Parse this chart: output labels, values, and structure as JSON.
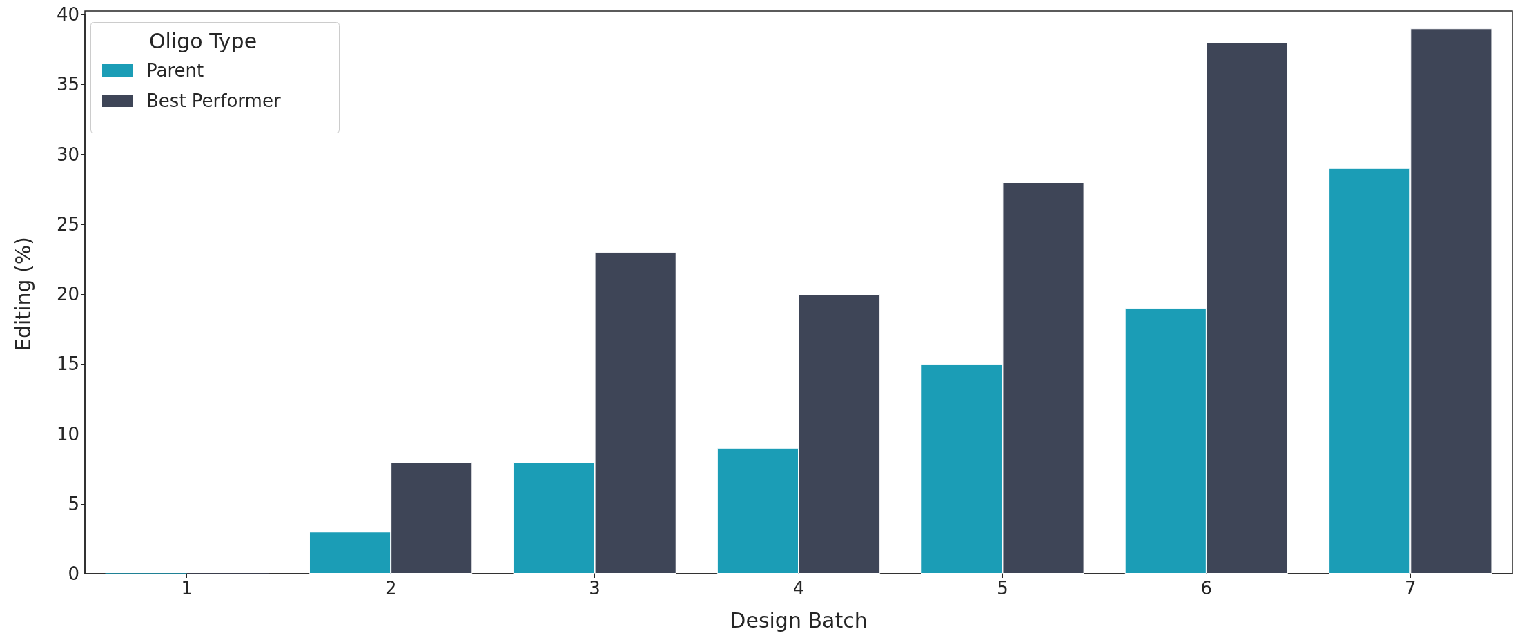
{
  "chart_data": {
    "type": "bar",
    "xlabel": "Design Batch",
    "ylabel": "Editing (%)",
    "legend_title": "Oligo Type",
    "categories": [
      "1",
      "2",
      "3",
      "4",
      "5",
      "6",
      "7"
    ],
    "series": [
      {
        "name": "Parent",
        "color": "#1b9db6",
        "values": [
          0,
          3,
          8,
          9,
          15,
          19,
          29
        ]
      },
      {
        "name": "Best Performer",
        "color": "#3e4557",
        "values": [
          0,
          8,
          23,
          20,
          28,
          38,
          39
        ]
      }
    ],
    "ylim": [
      0,
      40
    ],
    "yticks": [
      0,
      5,
      10,
      15,
      20,
      25,
      30,
      35,
      40
    ],
    "grid": false,
    "legend": "top left"
  }
}
